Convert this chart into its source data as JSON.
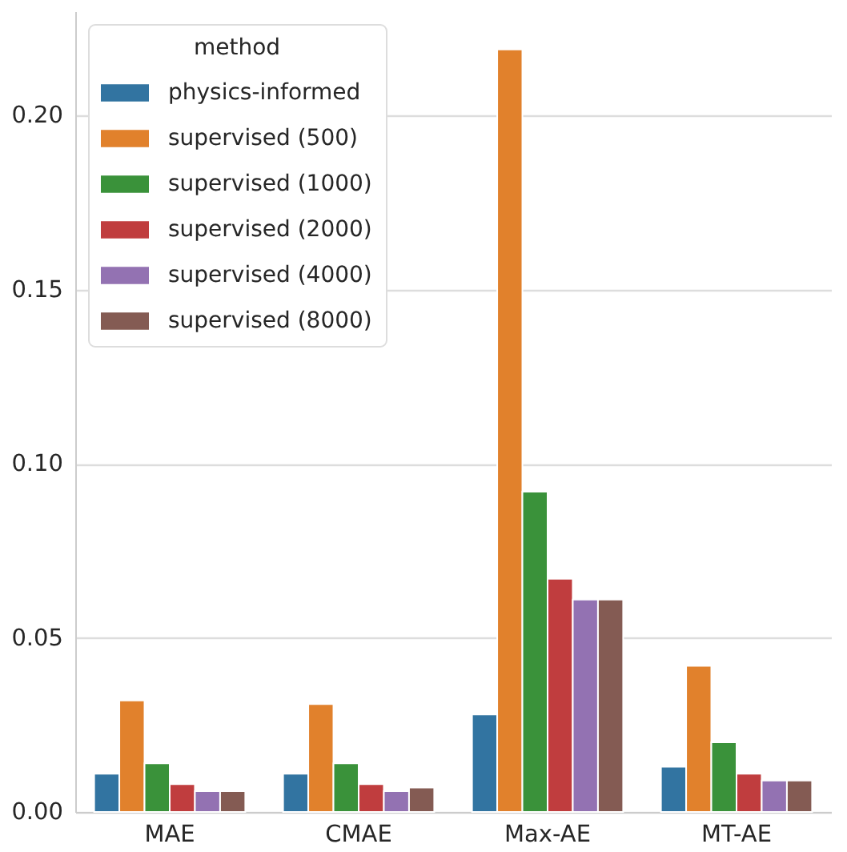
{
  "chart_data": {
    "type": "bar",
    "categories": [
      "MAE",
      "CMAE",
      "Max-AE",
      "MT-AE"
    ],
    "series": [
      {
        "name": "physics-informed",
        "color": "#3274a1",
        "values": [
          0.011,
          0.011,
          0.028,
          0.013
        ]
      },
      {
        "name": "supervised (500)",
        "color": "#e1812c",
        "values": [
          0.032,
          0.031,
          0.219,
          0.042
        ]
      },
      {
        "name": "supervised (1000)",
        "color": "#3a923a",
        "values": [
          0.014,
          0.014,
          0.092,
          0.02
        ]
      },
      {
        "name": "supervised (2000)",
        "color": "#c03d3e",
        "values": [
          0.008,
          0.008,
          0.067,
          0.011
        ]
      },
      {
        "name": "supervised (4000)",
        "color": "#9372b2",
        "values": [
          0.006,
          0.006,
          0.061,
          0.009
        ]
      },
      {
        "name": "supervised (8000)",
        "color": "#845b53",
        "values": [
          0.006,
          0.007,
          0.061,
          0.009
        ]
      }
    ],
    "legend_title": "method",
    "legend": "top left",
    "grid": "y",
    "ylim": [
      0,
      0.23
    ],
    "yticks": [
      {
        "value": 0,
        "label": "0.00"
      },
      0.05,
      {
        "value": 0.1,
        "label": "0.10"
      },
      0.15,
      {
        "value": 0.2,
        "label": "0.20"
      }
    ]
  }
}
